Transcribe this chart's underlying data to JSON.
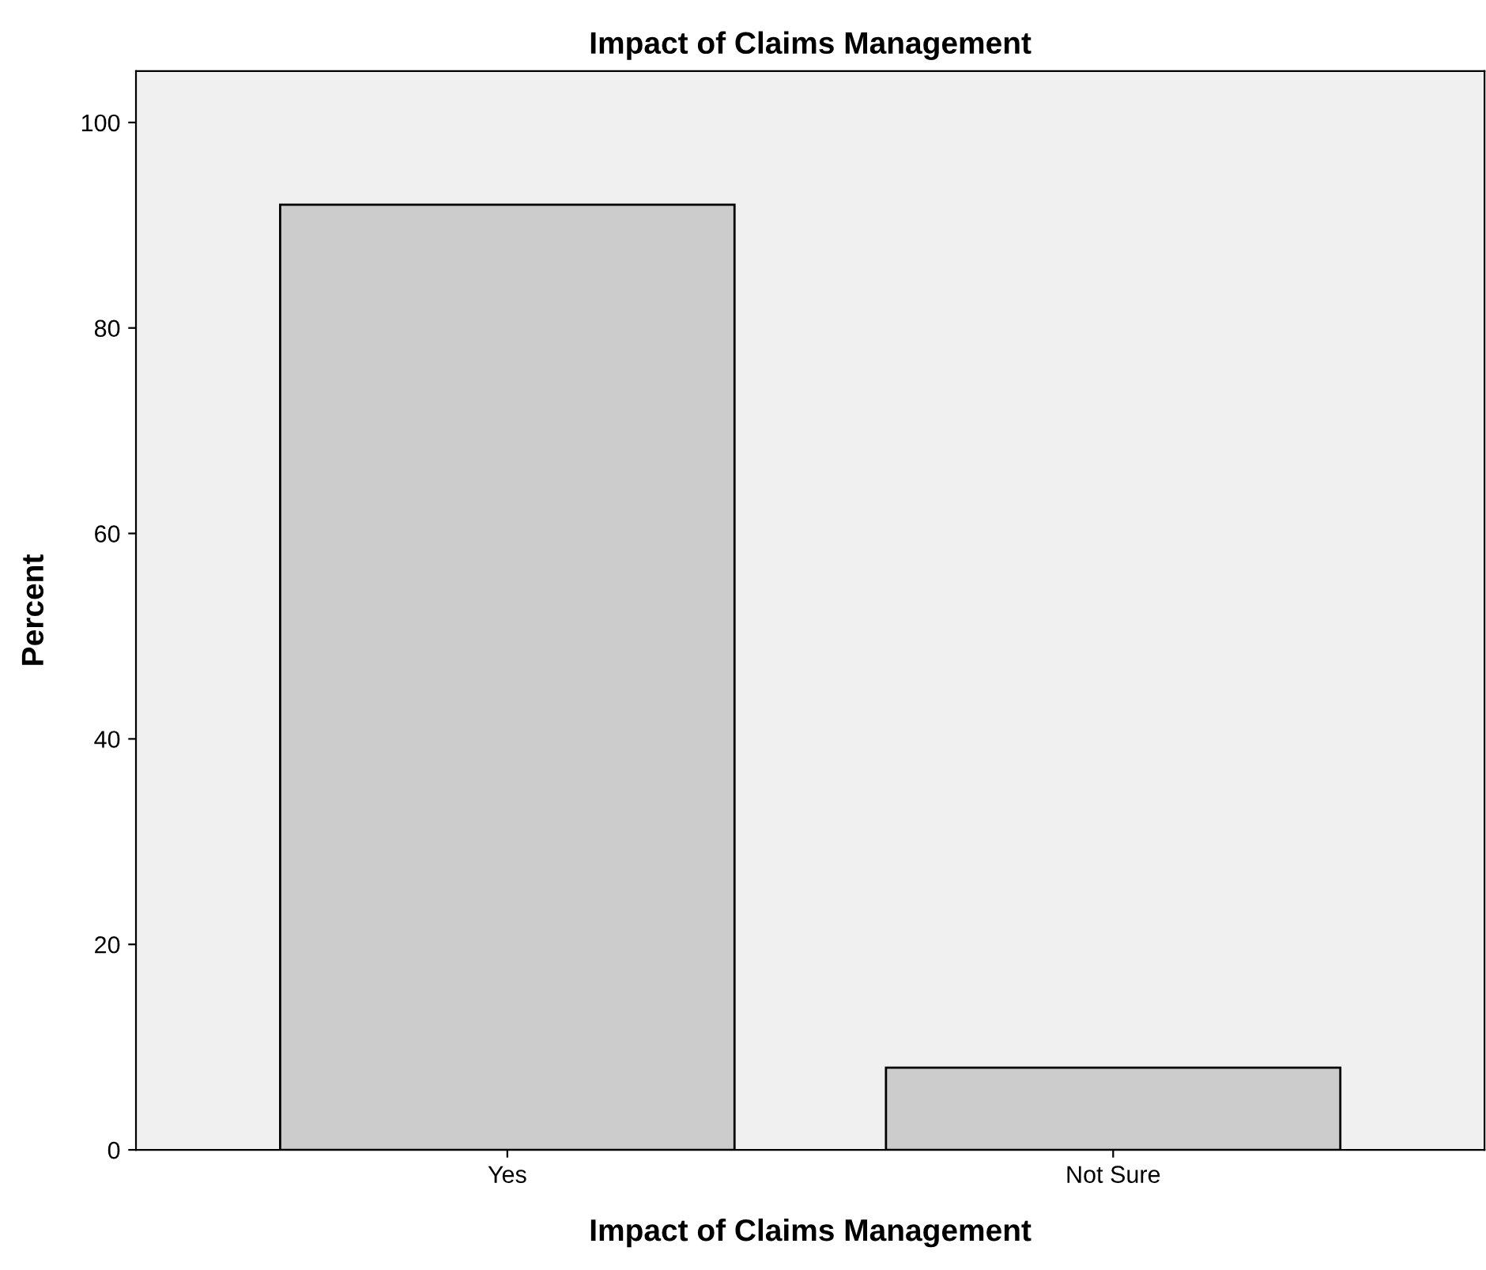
{
  "chart_data": {
    "type": "bar",
    "title": "Impact of Claims Management",
    "xlabel": "Impact of Claims Management",
    "ylabel": "Percent",
    "categories": [
      "Yes",
      "Not Sure"
    ],
    "values": [
      92,
      8
    ],
    "color": "#cccccc",
    "ylim": [
      0,
      105
    ],
    "yticks": [
      0,
      20,
      40,
      60,
      80,
      100
    ],
    "grid": false,
    "legend": false
  }
}
